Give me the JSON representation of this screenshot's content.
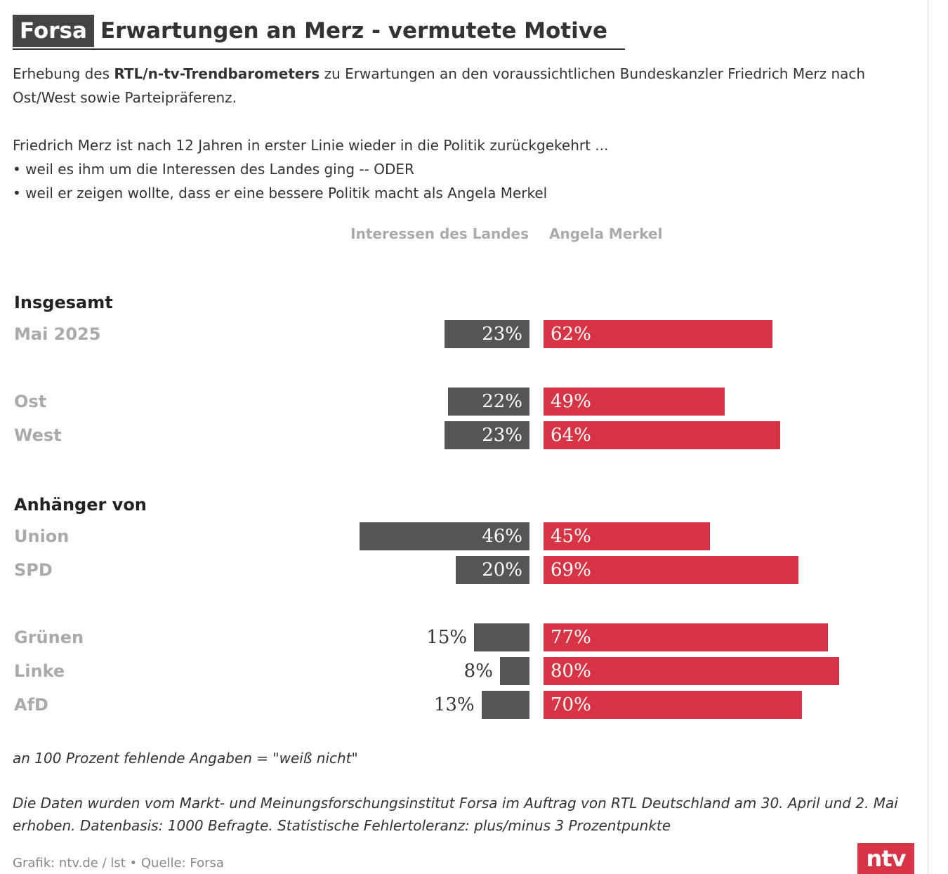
{
  "header": {
    "brand": "Forsa",
    "title": "Erwartungen an Merz - vermutete Motive"
  },
  "intro": {
    "prefix": "Erhebung des ",
    "bold": "RTL/n-tv-Trendbarometers",
    "suffix": " zu Erwartungen an den voraussichtlichen Bundeskanzler Friedrich Merz nach Ost/West sowie Parteipräferenz."
  },
  "question": {
    "line1": "Friedrich Merz ist nach 12 Jahren in erster Linie wieder in die Politik zurückgekehrt ...",
    "line2": "• weil es ihm um die Interessen des Landes ging -- ODER",
    "line3": "• weil er zeigen wollte, dass er eine bessere Politik macht als Angela Merkel"
  },
  "chart_data": {
    "type": "bar",
    "orientation": "horizontal-diverging",
    "series": [
      {
        "name": "Interessen des Landes",
        "color": "#555555"
      },
      {
        "name": "Angela Merkel",
        "color": "#d73445"
      }
    ],
    "groups": [
      {
        "heading": "Insgesamt",
        "rows": [
          {
            "label": "Mai 2025",
            "left": 23,
            "right": 62,
            "left_label": "23%",
            "right_label": "62%"
          }
        ]
      },
      {
        "heading": "",
        "rows": [
          {
            "label": "Ost",
            "left": 22,
            "right": 49,
            "left_label": "22%",
            "right_label": "49%"
          },
          {
            "label": "West",
            "left": 23,
            "right": 64,
            "left_label": "23%",
            "right_label": "64%"
          }
        ]
      },
      {
        "heading": "Anhänger von",
        "rows": [
          {
            "label": "Union",
            "left": 46,
            "right": 45,
            "left_label": "46%",
            "right_label": "45%"
          },
          {
            "label": "SPD",
            "left": 20,
            "right": 69,
            "left_label": "20%",
            "right_label": "69%"
          }
        ]
      },
      {
        "heading": "",
        "rows": [
          {
            "label": "Grünen",
            "left": 15,
            "right": 77,
            "left_label": "15%",
            "right_label": "77%"
          },
          {
            "label": "Linke",
            "left": 8,
            "right": 80,
            "left_label": "8%",
            "right_label": "80%"
          },
          {
            "label": "AfD",
            "left": 13,
            "right": 70,
            "left_label": "13%",
            "right_label": "70%"
          }
        ]
      }
    ]
  },
  "notes": {
    "missing": "an 100 Prozent fehlende Angaben = \"weiß nicht\"",
    "method": "Die Daten wurden vom Markt- und Meinungsforschungsinstitut Forsa im Auftrag von RTL Deutschland am 30. April und 2. Mai erhoben. Datenbasis: 1000 Befragte. Statistische Fehlertoleranz: plus/minus 3 Prozentpunkte"
  },
  "footer": "Grafik: ntv.de / lst • Quelle: Forsa",
  "logo": "ntv"
}
